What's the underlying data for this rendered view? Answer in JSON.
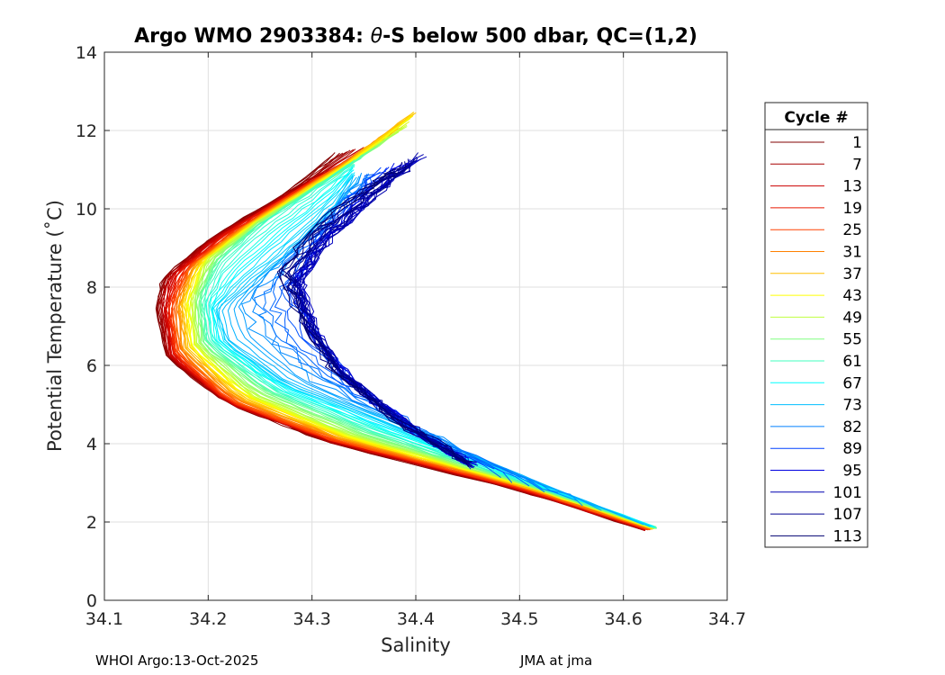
{
  "chart_data": {
    "type": "line",
    "title": {
      "prefix": "Argo WMO 2903384: ",
      "theta": "θ",
      "suffix": "-S below 500 dbar,  QC=(1,2)"
    },
    "xlabel": "Salinity",
    "ylabel": "Potential Temperature (˚C)",
    "xlim": [
      34.1,
      34.7
    ],
    "ylim": [
      0,
      14
    ],
    "xticks": [
      34.1,
      34.2,
      34.3,
      34.4,
      34.5,
      34.6,
      34.7
    ],
    "yticks": [
      0,
      2,
      4,
      6,
      8,
      10,
      12,
      14
    ],
    "grid": true,
    "legend": {
      "title": "Cycle #",
      "placement": "right",
      "entries": [
        {
          "label": "1",
          "color": "#800000"
        },
        {
          "label": "7",
          "color": "#a80000"
        },
        {
          "label": "13",
          "color": "#cc0000"
        },
        {
          "label": "19",
          "color": "#e81800"
        },
        {
          "label": "25",
          "color": "#ff4000"
        },
        {
          "label": "31",
          "color": "#ff8000"
        },
        {
          "label": "37",
          "color": "#ffbf00"
        },
        {
          "label": "43",
          "color": "#ffff00"
        },
        {
          "label": "49",
          "color": "#bfff40"
        },
        {
          "label": "55",
          "color": "#80ff80"
        },
        {
          "label": "61",
          "color": "#40ffbf"
        },
        {
          "label": "67",
          "color": "#00ffff"
        },
        {
          "label": "73",
          "color": "#00bfff"
        },
        {
          "label": "82",
          "color": "#0080ff"
        },
        {
          "label": "89",
          "color": "#0040ff"
        },
        {
          "label": "95",
          "color": "#0000e0"
        },
        {
          "label": "101",
          "color": "#0000b0"
        },
        {
          "label": "107",
          "color": "#000090"
        },
        {
          "label": "113",
          "color": "#000070"
        }
      ]
    },
    "series_shapes": [
      {
        "name": "1",
        "points": [
          [
            34.62,
            1.8
          ],
          [
            34.5,
            2.8
          ],
          [
            34.32,
            4.0
          ],
          [
            34.22,
            5.0
          ],
          [
            34.16,
            6.2
          ],
          [
            34.15,
            7.5
          ],
          [
            34.155,
            8.2
          ],
          [
            34.2,
            9.2
          ],
          [
            34.28,
            10.5
          ],
          [
            34.32,
            11.4
          ]
        ]
      },
      {
        "name": "13",
        "points": [
          [
            34.622,
            1.8
          ],
          [
            34.5,
            2.85
          ],
          [
            34.32,
            4.05
          ],
          [
            34.22,
            5.05
          ],
          [
            34.165,
            6.2
          ],
          [
            34.158,
            7.5
          ],
          [
            34.165,
            8.3
          ],
          [
            34.21,
            9.3
          ],
          [
            34.3,
            10.7
          ],
          [
            34.36,
            11.6
          ]
        ]
      },
      {
        "name": "25",
        "points": [
          [
            34.625,
            1.82
          ],
          [
            34.5,
            2.9
          ],
          [
            34.32,
            4.1
          ],
          [
            34.22,
            5.1
          ],
          [
            34.17,
            6.3
          ],
          [
            34.165,
            7.5
          ],
          [
            34.18,
            8.5
          ],
          [
            34.23,
            9.5
          ],
          [
            34.32,
            11.0
          ],
          [
            34.38,
            12.0
          ]
        ]
      },
      {
        "name": "37",
        "points": [
          [
            34.628,
            1.84
          ],
          [
            34.5,
            2.95
          ],
          [
            34.33,
            4.15
          ],
          [
            34.23,
            5.2
          ],
          [
            34.18,
            6.4
          ],
          [
            34.175,
            7.6
          ],
          [
            34.19,
            8.6
          ],
          [
            34.24,
            9.6
          ],
          [
            34.33,
            11.1
          ],
          [
            34.4,
            12.5
          ]
        ]
      },
      {
        "name": "49",
        "points": [
          [
            34.63,
            1.85
          ],
          [
            34.5,
            3.0
          ],
          [
            34.34,
            4.2
          ],
          [
            34.24,
            5.3
          ],
          [
            34.19,
            6.5
          ],
          [
            34.185,
            7.7
          ],
          [
            34.2,
            8.7
          ],
          [
            34.25,
            9.7
          ],
          [
            34.33,
            11.0
          ],
          [
            34.39,
            12.1
          ]
        ]
      },
      {
        "name": "61",
        "points": [
          [
            34.632,
            1.86
          ],
          [
            34.5,
            3.05
          ],
          [
            34.36,
            4.3
          ],
          [
            34.26,
            5.4
          ],
          [
            34.2,
            6.6
          ],
          [
            34.195,
            7.7
          ],
          [
            34.21,
            8.6
          ],
          [
            34.25,
            9.6
          ],
          [
            34.3,
            10.5
          ],
          [
            34.34,
            11.2
          ]
        ]
      },
      {
        "name": "73",
        "points": [
          [
            34.625,
            1.9
          ],
          [
            34.5,
            3.2
          ],
          [
            34.4,
            4.3
          ],
          [
            34.28,
            5.5
          ],
          [
            34.22,
            6.6
          ],
          [
            34.21,
            7.4
          ],
          [
            34.24,
            8.1
          ],
          [
            34.28,
            9.0
          ],
          [
            34.32,
            10.0
          ],
          [
            34.34,
            10.8
          ]
        ]
      },
      {
        "name": "89",
        "points": [
          [
            34.46,
            3.4
          ],
          [
            34.4,
            4.3
          ],
          [
            34.34,
            5.5
          ],
          [
            34.3,
            6.8
          ],
          [
            34.28,
            8.0
          ],
          [
            34.3,
            9.0
          ],
          [
            34.33,
            10.0
          ],
          [
            34.37,
            11.0
          ]
        ]
      },
      {
        "name": "101",
        "points": [
          [
            34.45,
            3.5
          ],
          [
            34.39,
            4.5
          ],
          [
            34.33,
            5.8
          ],
          [
            34.3,
            7.0
          ],
          [
            34.29,
            8.2
          ],
          [
            34.32,
            9.3
          ],
          [
            34.36,
            10.3
          ],
          [
            34.41,
            11.4
          ]
        ]
      },
      {
        "name": "113",
        "points": [
          [
            34.455,
            3.45
          ],
          [
            34.38,
            4.6
          ],
          [
            34.32,
            5.9
          ],
          [
            34.29,
            7.2
          ],
          [
            34.27,
            8.4
          ],
          [
            34.3,
            9.5
          ],
          [
            34.35,
            10.5
          ],
          [
            34.38,
            11.0
          ]
        ]
      }
    ]
  },
  "footer": {
    "left": "WHOI Argo:13-Oct-2025",
    "right": "JMA at jma"
  }
}
